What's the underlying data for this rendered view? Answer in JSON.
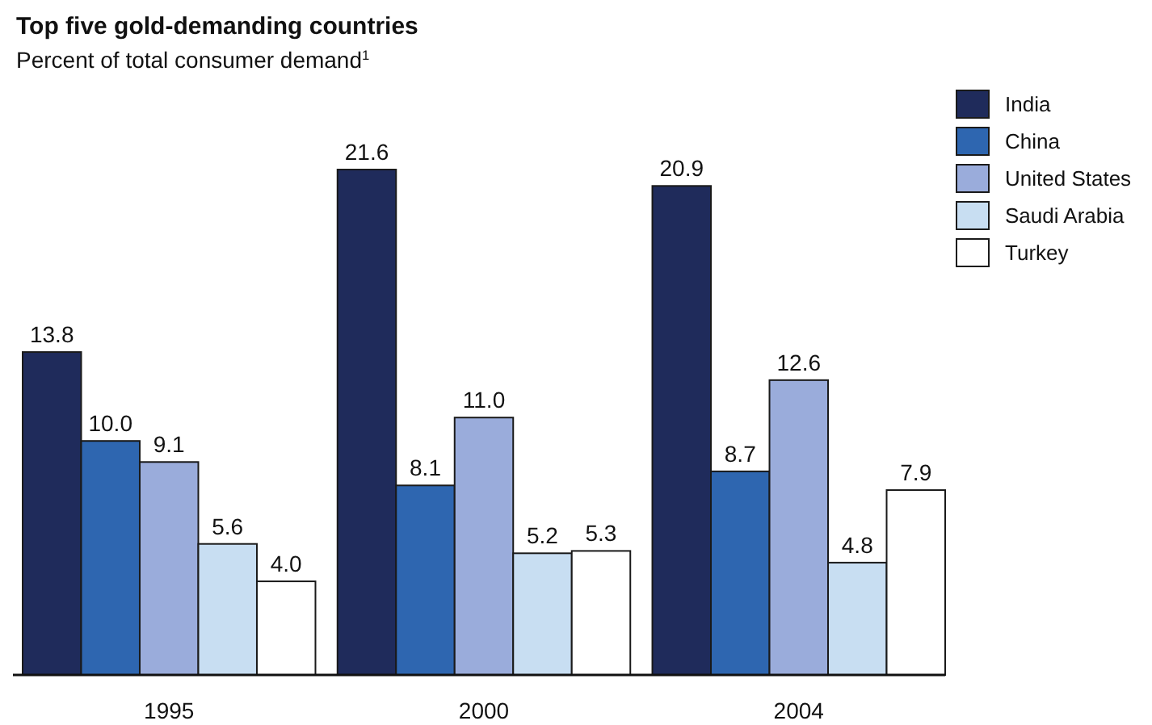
{
  "chart_data": {
    "type": "bar",
    "title": "Top five gold-demanding countries",
    "subtitle": "Percent of total consumer demand$^{1}$",
    "categories": [
      "1995",
      "2000",
      "2004"
    ],
    "series": [
      {
        "name": "India",
        "color": "#1f2b5b",
        "values": [
          13.8,
          21.6,
          20.9
        ],
        "value_labels": [
          "13.8",
          "21.6",
          "20.9"
        ]
      },
      {
        "name": "China",
        "color": "#2e66b0",
        "values": [
          10.0,
          8.1,
          8.7
        ],
        "value_labels": [
          "10.0",
          "8.1",
          "8.7"
        ]
      },
      {
        "name": "United States",
        "color": "#9aacdb",
        "values": [
          9.1,
          11.0,
          12.6
        ],
        "value_labels": [
          "9.1",
          "11.0",
          "12.6"
        ]
      },
      {
        "name": "Saudi Arabia",
        "color": "#c8def2",
        "values": [
          5.6,
          5.2,
          4.8
        ],
        "value_labels": [
          "5.6",
          "5.2",
          "4.8"
        ]
      },
      {
        "name": "Turkey",
        "color": "#ffffff",
        "values": [
          4.0,
          5.3,
          7.9
        ],
        "value_labels": [
          "4.0",
          "5.3",
          "7.9"
        ]
      }
    ],
    "legend": "top right"
  }
}
